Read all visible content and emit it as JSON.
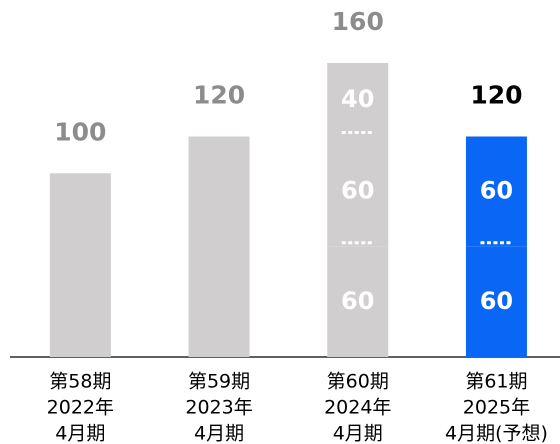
{
  "chart_data": {
    "type": "stacked-bar",
    "categories": [
      [
        "第58期",
        "2022年",
        "4月期"
      ],
      [
        "第59期",
        "2023年",
        "4月期"
      ],
      [
        "第60期",
        "2024年",
        "4月期"
      ],
      [
        "第61期",
        "2025年",
        "4月期(予想)"
      ]
    ],
    "series": [
      {
        "values": [
          100,
          120,
          60,
          60
        ]
      },
      {
        "values": [
          null,
          null,
          60,
          60
        ]
      },
      {
        "values": [
          null,
          null,
          40,
          null
        ]
      }
    ],
    "totals": [
      100,
      120,
      160,
      120
    ],
    "bar_colors": [
      "#d0cece",
      "#d0cece",
      "#d0cece",
      "#0a66f5"
    ],
    "total_label_colors": [
      "#8c8c8c",
      "#8c8c8c",
      "#8c8c8c",
      "#000000"
    ],
    "segment_labels": [
      false,
      false,
      true,
      true
    ],
    "ylim": [
      0,
      160
    ]
  }
}
